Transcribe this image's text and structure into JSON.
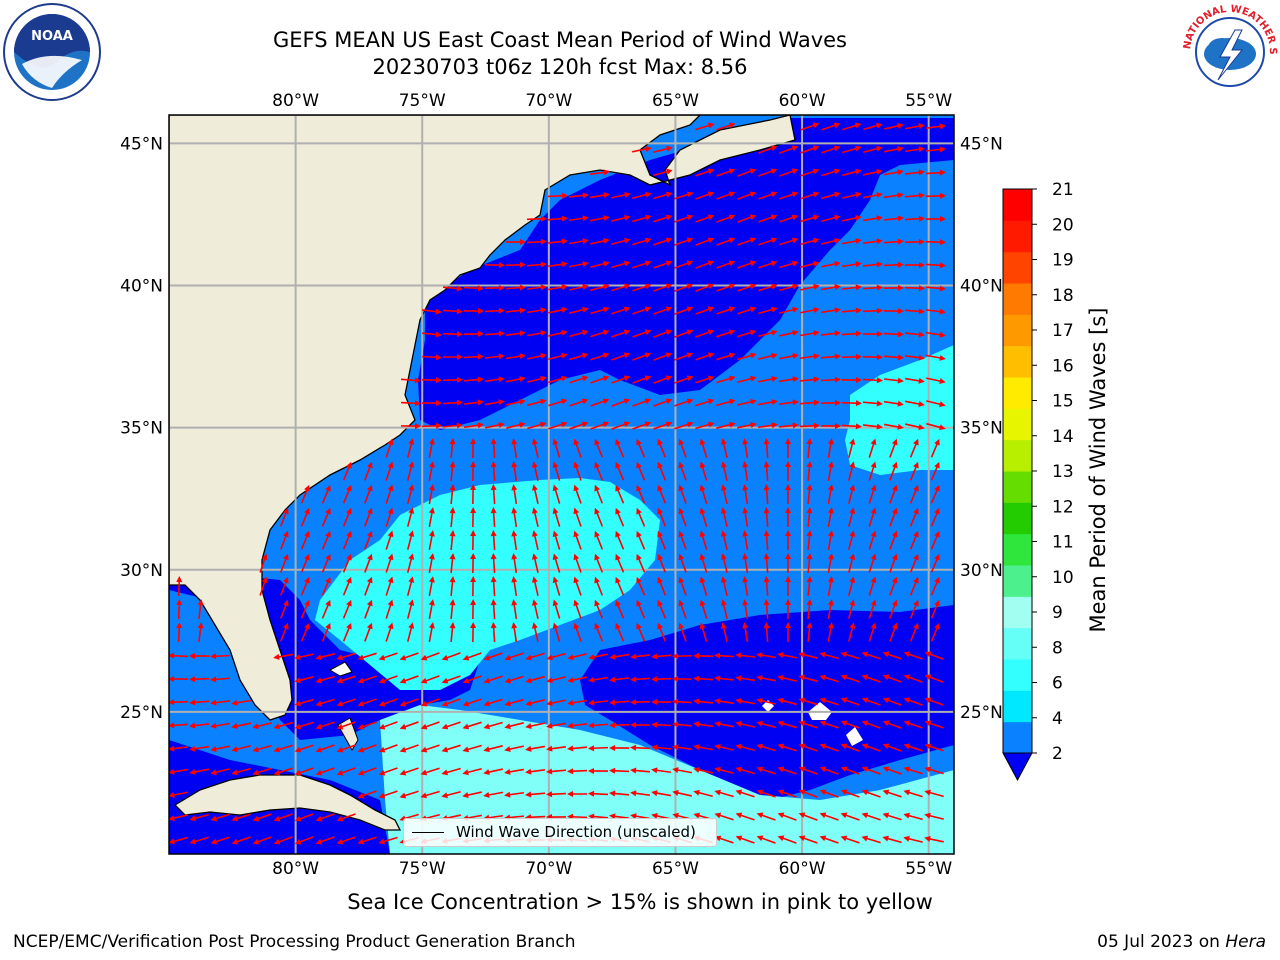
{
  "title": {
    "line1": "GEFS MEAN US East Coast Mean Period of Wind Waves",
    "line2": "20230703 t06z 120h fcst   Max: 8.56"
  },
  "map": {
    "lon_labels": [
      "80°W",
      "75°W",
      "70°W",
      "65°W",
      "60°W",
      "55°W"
    ],
    "lat_labels": [
      "45°N",
      "40°N",
      "35°N",
      "30°N",
      "25°N"
    ],
    "lon_range": [
      -85,
      -54
    ],
    "lat_range": [
      20,
      46
    ],
    "colors": {
      "land": "#efedd9",
      "deep_blue": "#0000f2",
      "mid_blue": "#0a82ff",
      "cyan": "#00ffff",
      "light_cyan": "#7ffff7",
      "arrows": "#ff0000",
      "grid": "#b0b0b0"
    }
  },
  "legend": {
    "label": "Wind Wave Direction (unscaled)"
  },
  "colorbar": {
    "title": "Mean Period of Wind Waves [s]",
    "ticks": [
      "2",
      "4",
      "6",
      "8",
      "9",
      "10",
      "11",
      "12",
      "13",
      "14",
      "15",
      "16",
      "17",
      "18",
      "19",
      "20",
      "21"
    ],
    "colors": [
      "#0a82ff",
      "#00e8ff",
      "#33ffff",
      "#66fff8",
      "#a0fff0",
      "#4cf08c",
      "#2ee63c",
      "#22cc00",
      "#66dd00",
      "#b8ee00",
      "#e8f500",
      "#ffeb00",
      "#ffbf00",
      "#ff9900",
      "#ff7a00",
      "#ff4400",
      "#ff1a00",
      "#ff0000"
    ],
    "under_color": "#0000f2"
  },
  "caption": "Sea Ice Concentration > 15% is shown in pink to yellow",
  "footer": {
    "left": "NCEP/EMC/Verification Post Processing Product Generation Branch",
    "right_date": "05 Jul 2023 on ",
    "right_host": "Hera"
  },
  "logos": {
    "noaa_text": "NOAA",
    "nws_text": "NATIONAL WEATHER SERVICE"
  }
}
